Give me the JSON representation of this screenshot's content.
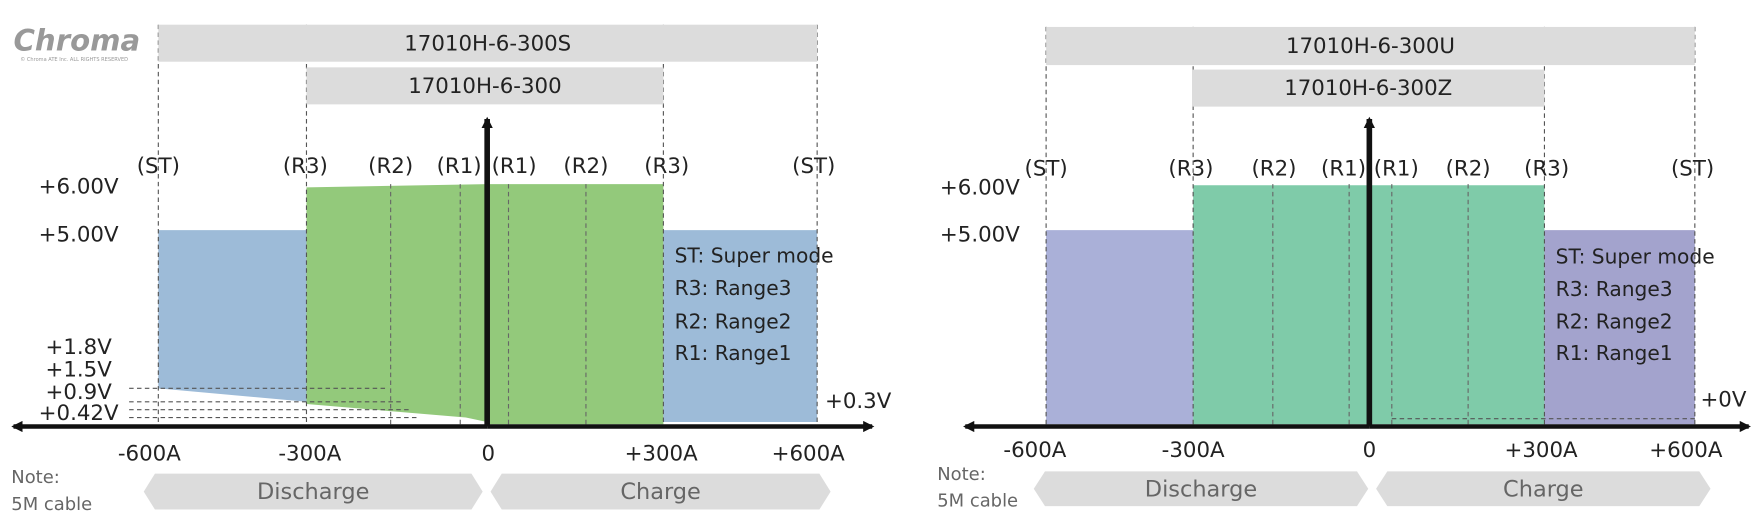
{
  "logo": {
    "brand": "Chroma",
    "copyright": "© Chroma ATE Inc. ALL RIGHTS RESERVED"
  },
  "panels": [
    {
      "models": [
        "17010H-6-300S",
        "17010H-6-300"
      ],
      "range_labels": [
        "(ST)",
        "(R3)",
        "(R2)",
        "(R1)",
        "(R1)",
        "(R2)",
        "(R3)",
        "(ST)"
      ],
      "voltage_labels": [
        "+6.00V",
        "+5.00V",
        "+1.8V",
        "+1.5V",
        "+0.9V",
        "+0.42V"
      ],
      "right_label": "+0.3V",
      "current_labels": [
        "-600A",
        "-300A",
        "0",
        "+300A",
        "+600A"
      ],
      "legend": [
        "ST: Super mode",
        "R3: Range3",
        "R2: Range2",
        "R1: Range1"
      ],
      "note": [
        "Note:",
        "5M cable"
      ],
      "directions": [
        "Discharge",
        "Charge"
      ]
    },
    {
      "models": [
        "17010H-6-300U",
        "17010H-6-300Z"
      ],
      "range_labels": [
        "(ST)",
        "(R3)",
        "(R2)",
        "(R1)",
        "(R1)",
        "(R2)",
        "(R3)",
        "(ST)"
      ],
      "voltage_labels": [
        "+6.00V",
        "+5.00V"
      ],
      "right_label": "+0V",
      "current_labels": [
        "-600A",
        "-300A",
        "0",
        "+300A",
        "+600A"
      ],
      "legend": [
        "ST: Super mode",
        "R3: Range3",
        "R2: Range2",
        "R1: Range1"
      ],
      "note": [
        "Note:",
        "5M cable"
      ],
      "directions": [
        "Discharge",
        "Charge"
      ]
    }
  ]
}
